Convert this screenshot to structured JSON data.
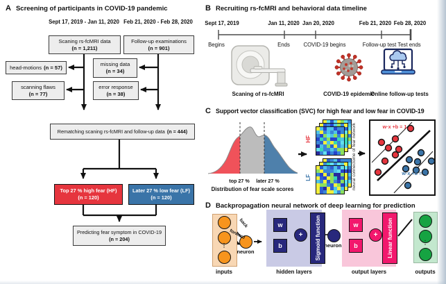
{
  "panelA": {
    "label": "A",
    "title": "Screening of participants in COVID-19 pandemic",
    "date_range_left": "Sept 17, 2019 - Jan 11, 2020",
    "date_range_right": "Feb 21, 2020 - Feb 28, 2020",
    "scan_box": {
      "text": "Scaning rs-fcMRI data",
      "n": "(n = 1,211)"
    },
    "followup_box": {
      "text": "Follow-up examinations",
      "n": "(n = 901)"
    },
    "head_motions_box": {
      "text": "head-motions",
      "n": "(n = 57)"
    },
    "missing_data_box": {
      "text": "missing data",
      "n": "(n = 34)"
    },
    "scanning_flaws_box": {
      "text": "scanning flaws",
      "n": "(n = 77)"
    },
    "error_response_box": {
      "text": "error response",
      "n": "(n = 38)"
    },
    "rematch_box": {
      "text": "Rematching scaning rs-fcMRI and follow-up data",
      "n": "(n = 444)"
    },
    "high_fear_box": {
      "text": "Top 27 % high fear (HF)",
      "n": "(n = 120)",
      "color": "#e6353e"
    },
    "low_fear_box": {
      "text": "Later 27 % low fear (LF)",
      "n": "(n = 120)",
      "color": "#3a74a8"
    },
    "predict_box": {
      "text": "Predicting fear symptom in COVID-19",
      "n": "(n = 204)"
    }
  },
  "panelB": {
    "label": "B",
    "title": "Recruiting rs-fcMRI and behavioral data timeline",
    "timeline": [
      {
        "date": "Sept 17, 2019",
        "label": "Begins"
      },
      {
        "date": "Jan 11, 2020",
        "label": "Ends"
      },
      {
        "date": "Jan 20, 2020",
        "label": "COVID-19 begins"
      },
      {
        "date": "Feb 21, 2020",
        "label": "Follow-up test"
      },
      {
        "date": "Feb 28, 2020",
        "label": "Test ends"
      }
    ],
    "captions": {
      "mri": "Scaning of rs-fcMRI",
      "virus": "COVID-19 epidemic",
      "laptop": "Online follow-up tests"
    }
  },
  "panelC": {
    "label": "C",
    "title": "Support vector classification (SVC) for high fear and low fear in COVID-19",
    "distribution": {
      "left_cut_label": "top 27 %",
      "right_cut_label": "later 27 %",
      "caption": "Distribution of fear scale scores",
      "left_color": "#f0525a",
      "mid_color": "#bcbcbc",
      "right_color": "#4e80ab"
    },
    "connectomes": {
      "hf_label": "HF",
      "lf_label": "LF",
      "axis_label": "neural connectome of fear network",
      "palette": [
        "#2744cc",
        "#3a86d8",
        "#2744cc",
        "#4fc3e8",
        "#37d6b7",
        "#8ce05e",
        "#3a86d8",
        "#282a9c",
        "#62e0ee",
        "#f4ef3b",
        "#2e5fd0",
        "#4fc3e8"
      ],
      "diag_color": "#f4ef3b"
    },
    "svc": {
      "eq_positive": "w·x +b = 1",
      "eq_negative": "w·x +b = -1",
      "hf_color": "#e6353e",
      "lf_color": "#3a74a8",
      "hf_points": [
        [
          58,
          11
        ],
        [
          36,
          26
        ],
        [
          16,
          31
        ],
        [
          26,
          39
        ],
        [
          41,
          41
        ],
        [
          36,
          49
        ],
        [
          21,
          58
        ],
        [
          11,
          74
        ]
      ],
      "lf_points": [
        [
          73,
          46
        ],
        [
          56,
          56
        ],
        [
          68,
          59
        ],
        [
          88,
          58
        ],
        [
          51,
          69
        ],
        [
          66,
          71
        ],
        [
          79,
          74
        ],
        [
          54,
          93
        ]
      ]
    }
  },
  "panelD": {
    "label": "D",
    "title": "Backpropagation neural network of deep learning for prediction",
    "inputs_label": "inputs",
    "hidden_label": "hidden layers",
    "output_label": "output layers",
    "outputs_label": "outputs",
    "neuron1_label": "neuron",
    "neuron2_label": "neuron",
    "back_label": "back",
    "forward_label": "forward",
    "weight_label": "w",
    "bias_label": "b",
    "plus_label": "+",
    "sigmoid_label": "Sigmoid function",
    "linear_label": "Linear function",
    "ellipsis": "⋮"
  }
}
